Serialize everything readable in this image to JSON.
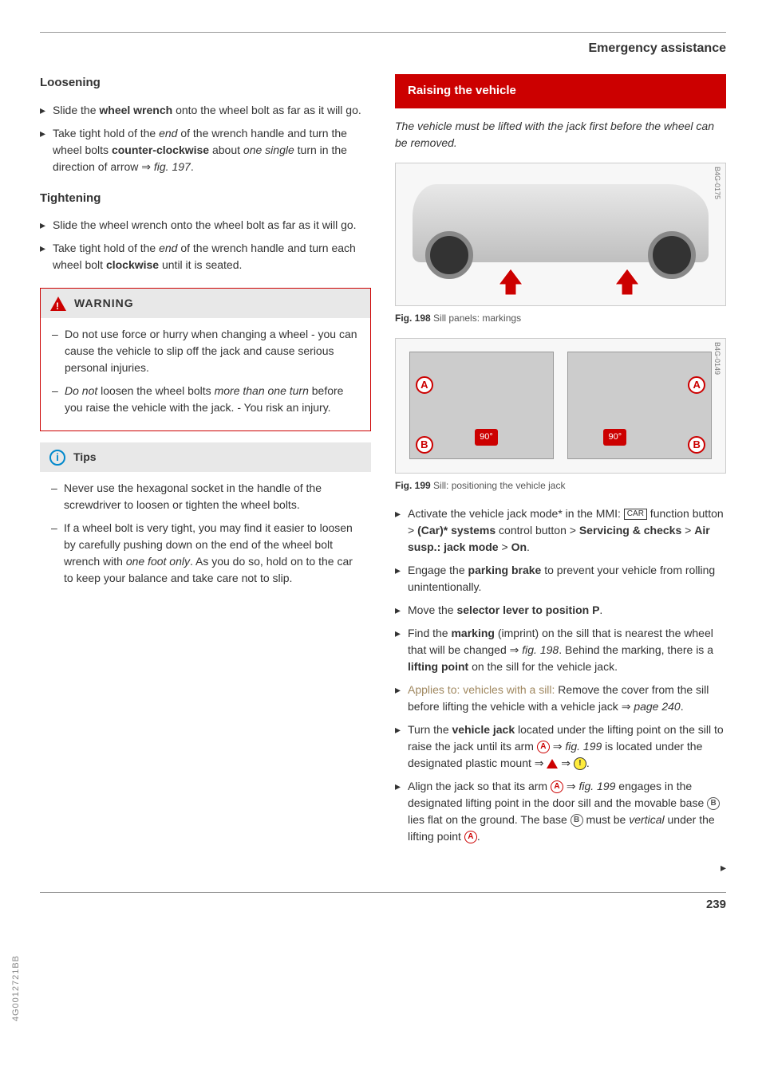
{
  "header": {
    "title": "Emergency assistance"
  },
  "left": {
    "loosening": {
      "heading": "Loosening",
      "items": [
        "Slide the <b>wheel wrench</b> onto the wheel bolt as far as it will go.",
        "Take tight hold of the <i>end</i> of the wrench handle and turn the wheel bolts <b>counter-clockwise</b> about <i>one single</i> turn in the direction of arrow ⇒ <i>fig. 197</i>."
      ]
    },
    "tightening": {
      "heading": "Tightening",
      "items": [
        "Slide the wheel wrench onto the wheel bolt as far as it will go.",
        "Take tight hold of the <i>end</i> of the wrench handle and turn each wheel bolt <b>clockwise</b> until it is seated."
      ]
    },
    "warning": {
      "title": "WARNING",
      "items": [
        "Do not use force or hurry when changing a wheel - you can cause the vehicle to slip off the jack and cause serious personal injuries.",
        "<i>Do not</i> loosen the wheel bolts <i>more than one turn</i> before you raise the vehicle with the jack. - You risk an injury."
      ]
    },
    "tips": {
      "title": "Tips",
      "items": [
        "Never use the hexagonal socket in the handle of the screwdriver to loosen or tighten the wheel bolts.",
        "If a wheel bolt is very tight, you may find it easier to loosen by carefully pushing down on the end of the wheel bolt wrench with <i>one foot only</i>. As you do so, hold on to the car to keep your balance and take care not to slip."
      ]
    }
  },
  "right": {
    "banner": "Raising the vehicle",
    "intro": "The vehicle must be lifted with the jack first before the wheel can be removed.",
    "fig198": {
      "label": "B4G-0175",
      "caption_bold": "Fig. 198",
      "caption_rest": " Sill panels: markings"
    },
    "fig199": {
      "label": "B4G-0149",
      "caption_bold": "Fig. 199",
      "caption_rest": " Sill: positioning the vehicle jack",
      "angle": "90°"
    },
    "steps": [
      "Activate the vehicle jack mode* in the MMI: <span class='car-key'>CAR</span> function button &gt; <b>(Car)* systems</b> control button &gt; <b>Servicing &amp; checks</b> &gt; <b>Air susp.: jack mode</b> &gt; <b>On</b>.",
      "Engage the <b>parking brake</b> to prevent your vehicle from rolling unintentionally.",
      "Move the <b>selector lever to position P</b>.",
      "Find the <b>marking</b> (imprint) on the sill that is nearest the wheel that will be changed ⇒ <i>fig. 198</i>. Behind the marking, there is a <b>lifting point</b> on the sill for the vehicle jack.",
      "<span class='applies'>Applies to: vehicles with a sill:</span> Remove the cover from the sill before lifting the vehicle with a vehicle jack ⇒ <i>page 240</i>.",
      "Turn the <b>vehicle jack</b> located under the lifting point on the sill to raise the jack until its arm <span class='inline-icon'>A</span> ⇒ <i>fig. 199</i> is located under the designated plastic mount ⇒ <span class='inline-tri'></span> ⇒ <span class='inline-icon yellow'>!</span>.",
      "Align the jack so that its arm <span class='inline-icon'>A</span> ⇒ <i>fig. 199</i> engages in the designated lifting point in the door sill and the movable base <span class='inline-icon grey'>B</span> lies flat on the ground. The base <span class='inline-icon grey'>B</span> must be <i>vertical</i> under the lifting point <span class='inline-icon'>A</span>."
    ]
  },
  "footer": {
    "side_code": "4G0012721BB",
    "page": "239"
  },
  "colors": {
    "accent_red": "#c00",
    "bg_grey": "#e8e8e8",
    "text": "#333"
  }
}
